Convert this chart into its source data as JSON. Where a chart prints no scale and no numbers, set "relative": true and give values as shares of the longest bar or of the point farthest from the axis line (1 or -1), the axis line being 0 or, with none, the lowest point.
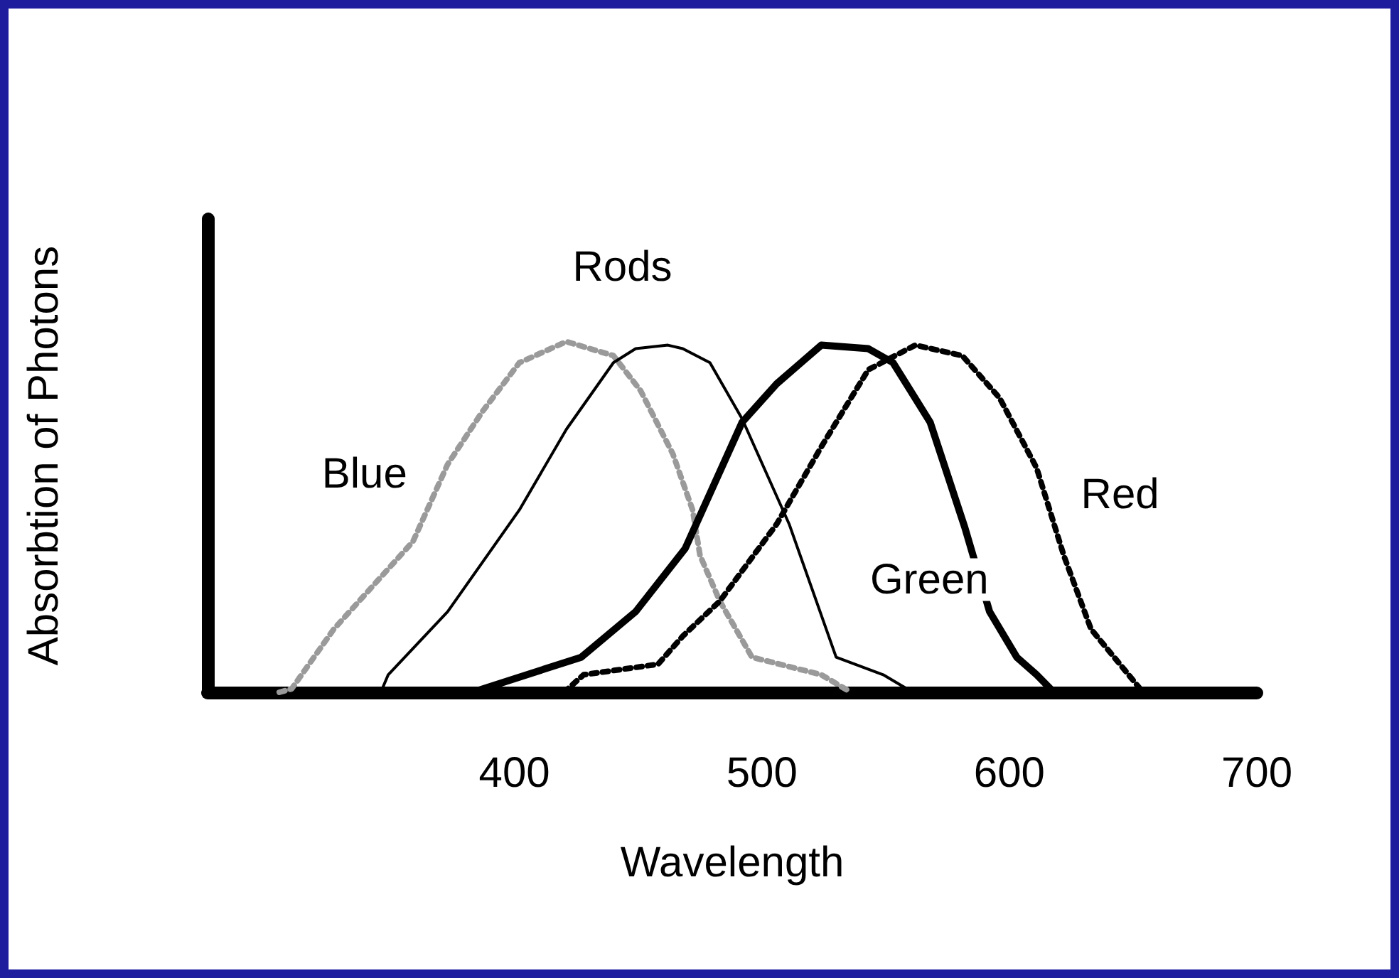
{
  "chart_data": {
    "type": "line",
    "relative": true,
    "xlabel": "Wavelength",
    "ylabel": "Absorbtion of Photons",
    "xlim": [
      276,
      700
    ],
    "xticks": [
      400,
      500,
      600,
      700
    ],
    "marker": "none",
    "series": [
      {
        "name": "Blue",
        "color": "#9a9a9a",
        "line_style": "dotted",
        "x": [
          305,
          310,
          327,
          359,
          373,
          387,
          402,
          421,
          440,
          451,
          464,
          472,
          475,
          483,
          496,
          524,
          536
        ],
        "values": [
          0,
          0.01,
          0.18,
          0.43,
          0.65,
          0.8,
          0.94,
          1,
          0.96,
          0.86,
          0.68,
          0.52,
          0.39,
          0.26,
          0.1,
          0.05,
          0
        ]
      },
      {
        "name": "Rods",
        "color": "#000000",
        "line_style": "solid",
        "x": [
          346,
          349,
          373,
          402,
          421,
          440,
          449,
          462,
          468,
          479,
          492,
          511,
          530,
          549,
          561
        ],
        "values": [
          0,
          0.05,
          0.23,
          0.52,
          0.75,
          0.94,
          0.98,
          0.99,
          0.98,
          0.94,
          0.78,
          0.48,
          0.1,
          0.05,
          0
        ]
      },
      {
        "name": "Green",
        "color": "#000000",
        "line_style": "solid",
        "x": [
          383,
          427,
          449,
          469,
          492,
          506,
          524,
          543,
          553,
          568,
          582,
          592,
          603,
          611,
          618
        ],
        "values": [
          0,
          0.1,
          0.23,
          0.41,
          0.77,
          0.88,
          0.99,
          0.98,
          0.94,
          0.77,
          0.47,
          0.23,
          0.1,
          0.05,
          0
        ]
      },
      {
        "name": "Red",
        "color": "#000000",
        "line_style": "dotted",
        "x": [
          420,
          428,
          458,
          468,
          483,
          506,
          524,
          543,
          562,
          581,
          596,
          611,
          622,
          633,
          647,
          654
        ],
        "values": [
          0,
          0.05,
          0.08,
          0.16,
          0.26,
          0.48,
          0.7,
          0.92,
          0.99,
          0.96,
          0.84,
          0.64,
          0.39,
          0.18,
          0.06,
          0
        ]
      }
    ]
  }
}
